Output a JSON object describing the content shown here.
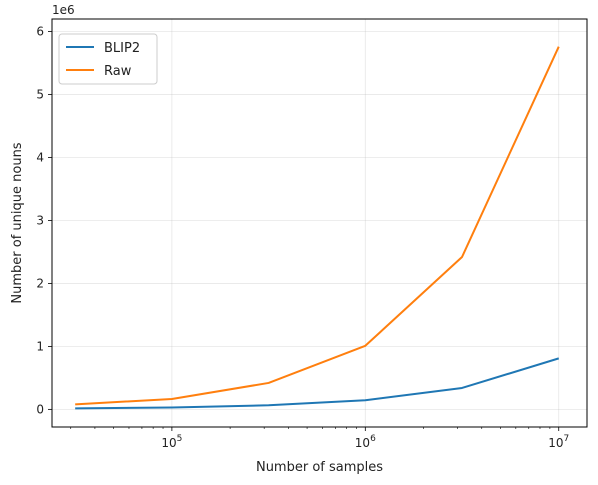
{
  "chart_data": {
    "type": "line",
    "title": "",
    "xlabel": "Number of samples",
    "ylabel": "Number of unique nouns",
    "x_scale": "log",
    "x": [
      31623,
      100000,
      316228,
      1000000,
      3162278,
      10000000
    ],
    "xlim": [
      24000,
      14000000
    ],
    "x_ticks": [
      100000,
      1000000,
      10000000
    ],
    "x_tick_labels": [
      {
        "base": "10",
        "exp": "5"
      },
      {
        "base": "10",
        "exp": "6"
      },
      {
        "base": "10",
        "exp": "7"
      }
    ],
    "ylim": [
      -280000,
      6200000
    ],
    "y_ticks": [
      0,
      1000000,
      2000000,
      3000000,
      4000000,
      5000000,
      6000000
    ],
    "y_tick_labels": [
      "0",
      "1",
      "2",
      "3",
      "4",
      "5",
      "6"
    ],
    "y_offset_label": "1e6",
    "grid": true,
    "legend_position": "top-left",
    "series": [
      {
        "name": "BLIP2",
        "color": "#1f77b4",
        "values": [
          15000,
          30000,
          65000,
          145000,
          340000,
          810000
        ]
      },
      {
        "name": "Raw",
        "color": "#ff7f0e",
        "values": [
          80000,
          165000,
          420000,
          1010000,
          2420000,
          5760000
        ]
      }
    ]
  }
}
